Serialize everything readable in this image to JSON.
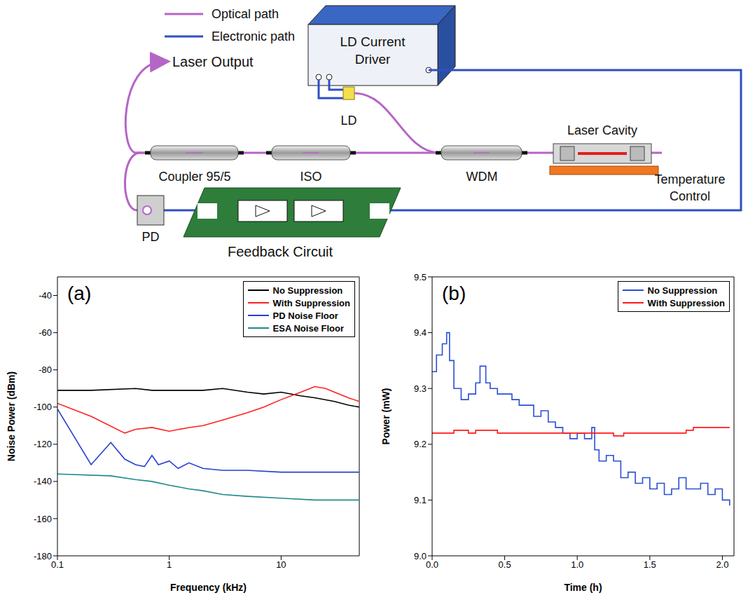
{
  "diagram": {
    "legend": [
      {
        "label": "Optical path",
        "color": "#b565c6"
      },
      {
        "label": "Electronic path",
        "color": "#2f4fc4"
      }
    ],
    "labels": {
      "driver": [
        "LD  Current",
        "Driver"
      ],
      "ld": [
        "LD"
      ],
      "output": [
        "Laser Output"
      ],
      "wdm": [
        "WDM"
      ],
      "cavity": [
        "Laser Cavity"
      ],
      "temperature": [
        "Temperature",
        "Control"
      ],
      "iso": [
        "ISO"
      ],
      "coupler": [
        "Coupler  95/5"
      ],
      "pd": [
        "PD"
      ],
      "feedback": [
        "Feedback Circuit"
      ]
    }
  },
  "chart_data": [
    {
      "type": "line",
      "panel_label": "(a)",
      "x_label": "Frequency (kHz)",
      "y_label": "Noise Power (dBm)",
      "log": "x",
      "xlim": [
        0.1,
        50
      ],
      "xticks": [
        0.1,
        1,
        10
      ],
      "ylim": [
        -180,
        -30
      ],
      "yticks": [
        -180,
        -160,
        -140,
        -120,
        -100,
        -80,
        -60,
        -40
      ],
      "legend": "upper right",
      "series": [
        {
          "name": "No Suppression",
          "color": "#000000",
          "x": [
            0.1,
            0.2,
            0.5,
            0.7,
            1,
            2,
            3,
            5,
            7,
            10,
            15,
            20,
            30,
            40,
            50
          ],
          "values": [
            -91,
            -91,
            -90,
            -91,
            -91,
            -91,
            -90,
            -92,
            -93,
            -92,
            -94,
            -95,
            -97,
            -99,
            -100
          ]
        },
        {
          "name": "With Suppression",
          "color": "#ff2020",
          "x": [
            0.1,
            0.2,
            0.4,
            0.5,
            0.7,
            1,
            1.5,
            2,
            3,
            5,
            7,
            10,
            15,
            20,
            25,
            30,
            40,
            50
          ],
          "values": [
            -98,
            -105,
            -114,
            -112,
            -111,
            -113,
            -111,
            -110,
            -107,
            -103,
            -100,
            -96,
            -92,
            -89,
            -90,
            -92,
            -95,
            -97
          ]
        },
        {
          "name": "PD Noise Floor",
          "color": "#2a3fd0",
          "x": [
            0.1,
            0.2,
            0.3,
            0.4,
            0.5,
            0.6,
            0.7,
            0.8,
            1,
            1.2,
            1.5,
            2,
            3,
            5,
            10,
            20,
            50
          ],
          "values": [
            -101,
            -131,
            -119,
            -128,
            -131,
            -132,
            -126,
            -131,
            -129,
            -133,
            -130,
            -133,
            -134,
            -134,
            -135,
            -135,
            -135
          ]
        },
        {
          "name": "ESA Noise Floor",
          "color": "#1f8a8a",
          "x": [
            0.1,
            0.3,
            0.5,
            0.7,
            1,
            1.5,
            2,
            3,
            5,
            10,
            20,
            50
          ],
          "values": [
            -136,
            -137,
            -139,
            -140,
            -142,
            -144,
            -145,
            -147,
            -148,
            -149,
            -150,
            -150
          ]
        }
      ]
    },
    {
      "type": "line",
      "panel_label": "(b)",
      "x_label": "Time (h)",
      "y_label": "Power (mW)",
      "xlim": [
        0,
        2.08
      ],
      "xticks": [
        {
          "value": 0,
          "label": "0.0"
        },
        0.5,
        {
          "value": 1,
          "label": "1.0"
        },
        1.5,
        {
          "value": 2,
          "label": "2.0"
        }
      ],
      "ylim": [
        9.0,
        9.5
      ],
      "yticks": [
        {
          "value": 9.0,
          "label": "9.0"
        },
        9.1,
        9.2,
        9.3,
        9.4,
        9.5
      ],
      "legend": "upper right",
      "series": [
        {
          "name": "No Suppression",
          "color": "#2a4fd6",
          "line_style": "step",
          "x": [
            0,
            0.03,
            0.07,
            0.1,
            0.12,
            0.15,
            0.2,
            0.25,
            0.3,
            0.33,
            0.37,
            0.4,
            0.45,
            0.5,
            0.55,
            0.6,
            0.65,
            0.7,
            0.75,
            0.8,
            0.85,
            0.9,
            0.95,
            1.0,
            1.05,
            1.1,
            1.12,
            1.15,
            1.2,
            1.25,
            1.3,
            1.35,
            1.4,
            1.45,
            1.5,
            1.55,
            1.6,
            1.65,
            1.7,
            1.75,
            1.8,
            1.85,
            1.9,
            1.95,
            2.0,
            2.05
          ],
          "values": [
            9.33,
            9.36,
            9.38,
            9.4,
            9.35,
            9.3,
            9.28,
            9.29,
            9.31,
            9.34,
            9.31,
            9.3,
            9.29,
            9.29,
            9.28,
            9.27,
            9.27,
            9.25,
            9.26,
            9.24,
            9.23,
            9.22,
            9.21,
            9.22,
            9.21,
            9.23,
            9.19,
            9.17,
            9.18,
            9.17,
            9.14,
            9.15,
            9.13,
            9.14,
            9.12,
            9.13,
            9.11,
            9.12,
            9.14,
            9.12,
            9.12,
            9.13,
            9.11,
            9.12,
            9.1,
            9.09
          ]
        },
        {
          "name": "With Suppression",
          "color": "#ff1a1a",
          "line_style": "step",
          "x": [
            0,
            0.15,
            0.25,
            0.3,
            0.45,
            1.25,
            1.32,
            1.75,
            1.8,
            2.05
          ],
          "values": [
            9.22,
            9.225,
            9.22,
            9.225,
            9.22,
            9.215,
            9.22,
            9.225,
            9.23,
            9.23
          ]
        }
      ]
    }
  ]
}
